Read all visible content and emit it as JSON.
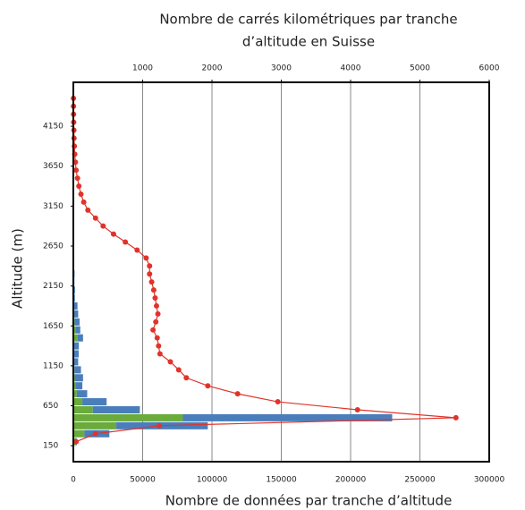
{
  "chart_data": {
    "type": "bar",
    "orientation": "horizontal",
    "stacked": true,
    "title": [
      "Nombre de carrés kilométriques par tranche",
      "d’altitude en Suisse"
    ],
    "xlabel": "Nombre de données par tranche d’altitude",
    "ylabel": "Altitude (m)",
    "y": [
      200,
      300,
      400,
      500,
      600,
      700,
      800,
      900,
      1000,
      1100,
      1200,
      1300,
      1400,
      1500,
      1600,
      1700,
      1800,
      1900,
      2000,
      2100,
      2200,
      2300,
      2400,
      2500,
      2600,
      2700,
      2800,
      2900,
      3000,
      3100,
      3200,
      3300,
      3400,
      3500,
      3600,
      3700,
      3800,
      3900,
      4000,
      4100,
      4200,
      4300,
      4400,
      4500
    ],
    "band": 100,
    "series": [
      {
        "color": "#6aab3c",
        "values": [
          1500,
          8000,
          31000,
          79000,
          14000,
          6500,
          2500,
          1500,
          1000,
          800,
          500,
          400,
          500,
          3000,
          1500,
          1000,
          500,
          500,
          300,
          300,
          200,
          200,
          150,
          150,
          100,
          100,
          100,
          100,
          50,
          50,
          50,
          50,
          50,
          50,
          0,
          0,
          0,
          0,
          0,
          0,
          0,
          0,
          0,
          0
        ]
      },
      {
        "color": "#4a7ebb",
        "values": [
          1000,
          18000,
          66000,
          151000,
          34000,
          17500,
          7500,
          5000,
          6000,
          4700,
          3000,
          3500,
          3500,
          4000,
          3500,
          3500,
          3000,
          2500,
          800,
          900,
          600,
          700,
          500,
          500,
          400,
          400,
          300,
          300,
          300,
          200,
          200,
          200,
          150,
          150,
          100,
          100,
          100,
          100,
          100,
          100,
          100,
          100,
          100,
          100
        ]
      },
      {
        "type": "line",
        "axis": "x2",
        "color": "#e0342b",
        "values": [
          40,
          320,
          1240,
          5520,
          4100,
          2950,
          2370,
          1940,
          1630,
          1520,
          1400,
          1250,
          1230,
          1210,
          1150,
          1190,
          1220,
          1200,
          1180,
          1160,
          1130,
          1100,
          1100,
          1050,
          920,
          750,
          580,
          430,
          320,
          210,
          150,
          110,
          80,
          60,
          40,
          30,
          20,
          15,
          10,
          8,
          5,
          3,
          2,
          1
        ]
      }
    ],
    "xlim": [
      0,
      300000
    ],
    "xticks": [
      0,
      50000,
      100000,
      150000,
      200000,
      250000,
      300000
    ],
    "x2lim": [
      0,
      6000
    ],
    "x2ticks": [
      1000,
      2000,
      3000,
      4000,
      5000,
      6000
    ],
    "ylim": [
      -50,
      4700
    ],
    "yticks": [
      150,
      650,
      1150,
      1650,
      2150,
      2650,
      3150,
      3650,
      4150
    ],
    "grid": true
  }
}
